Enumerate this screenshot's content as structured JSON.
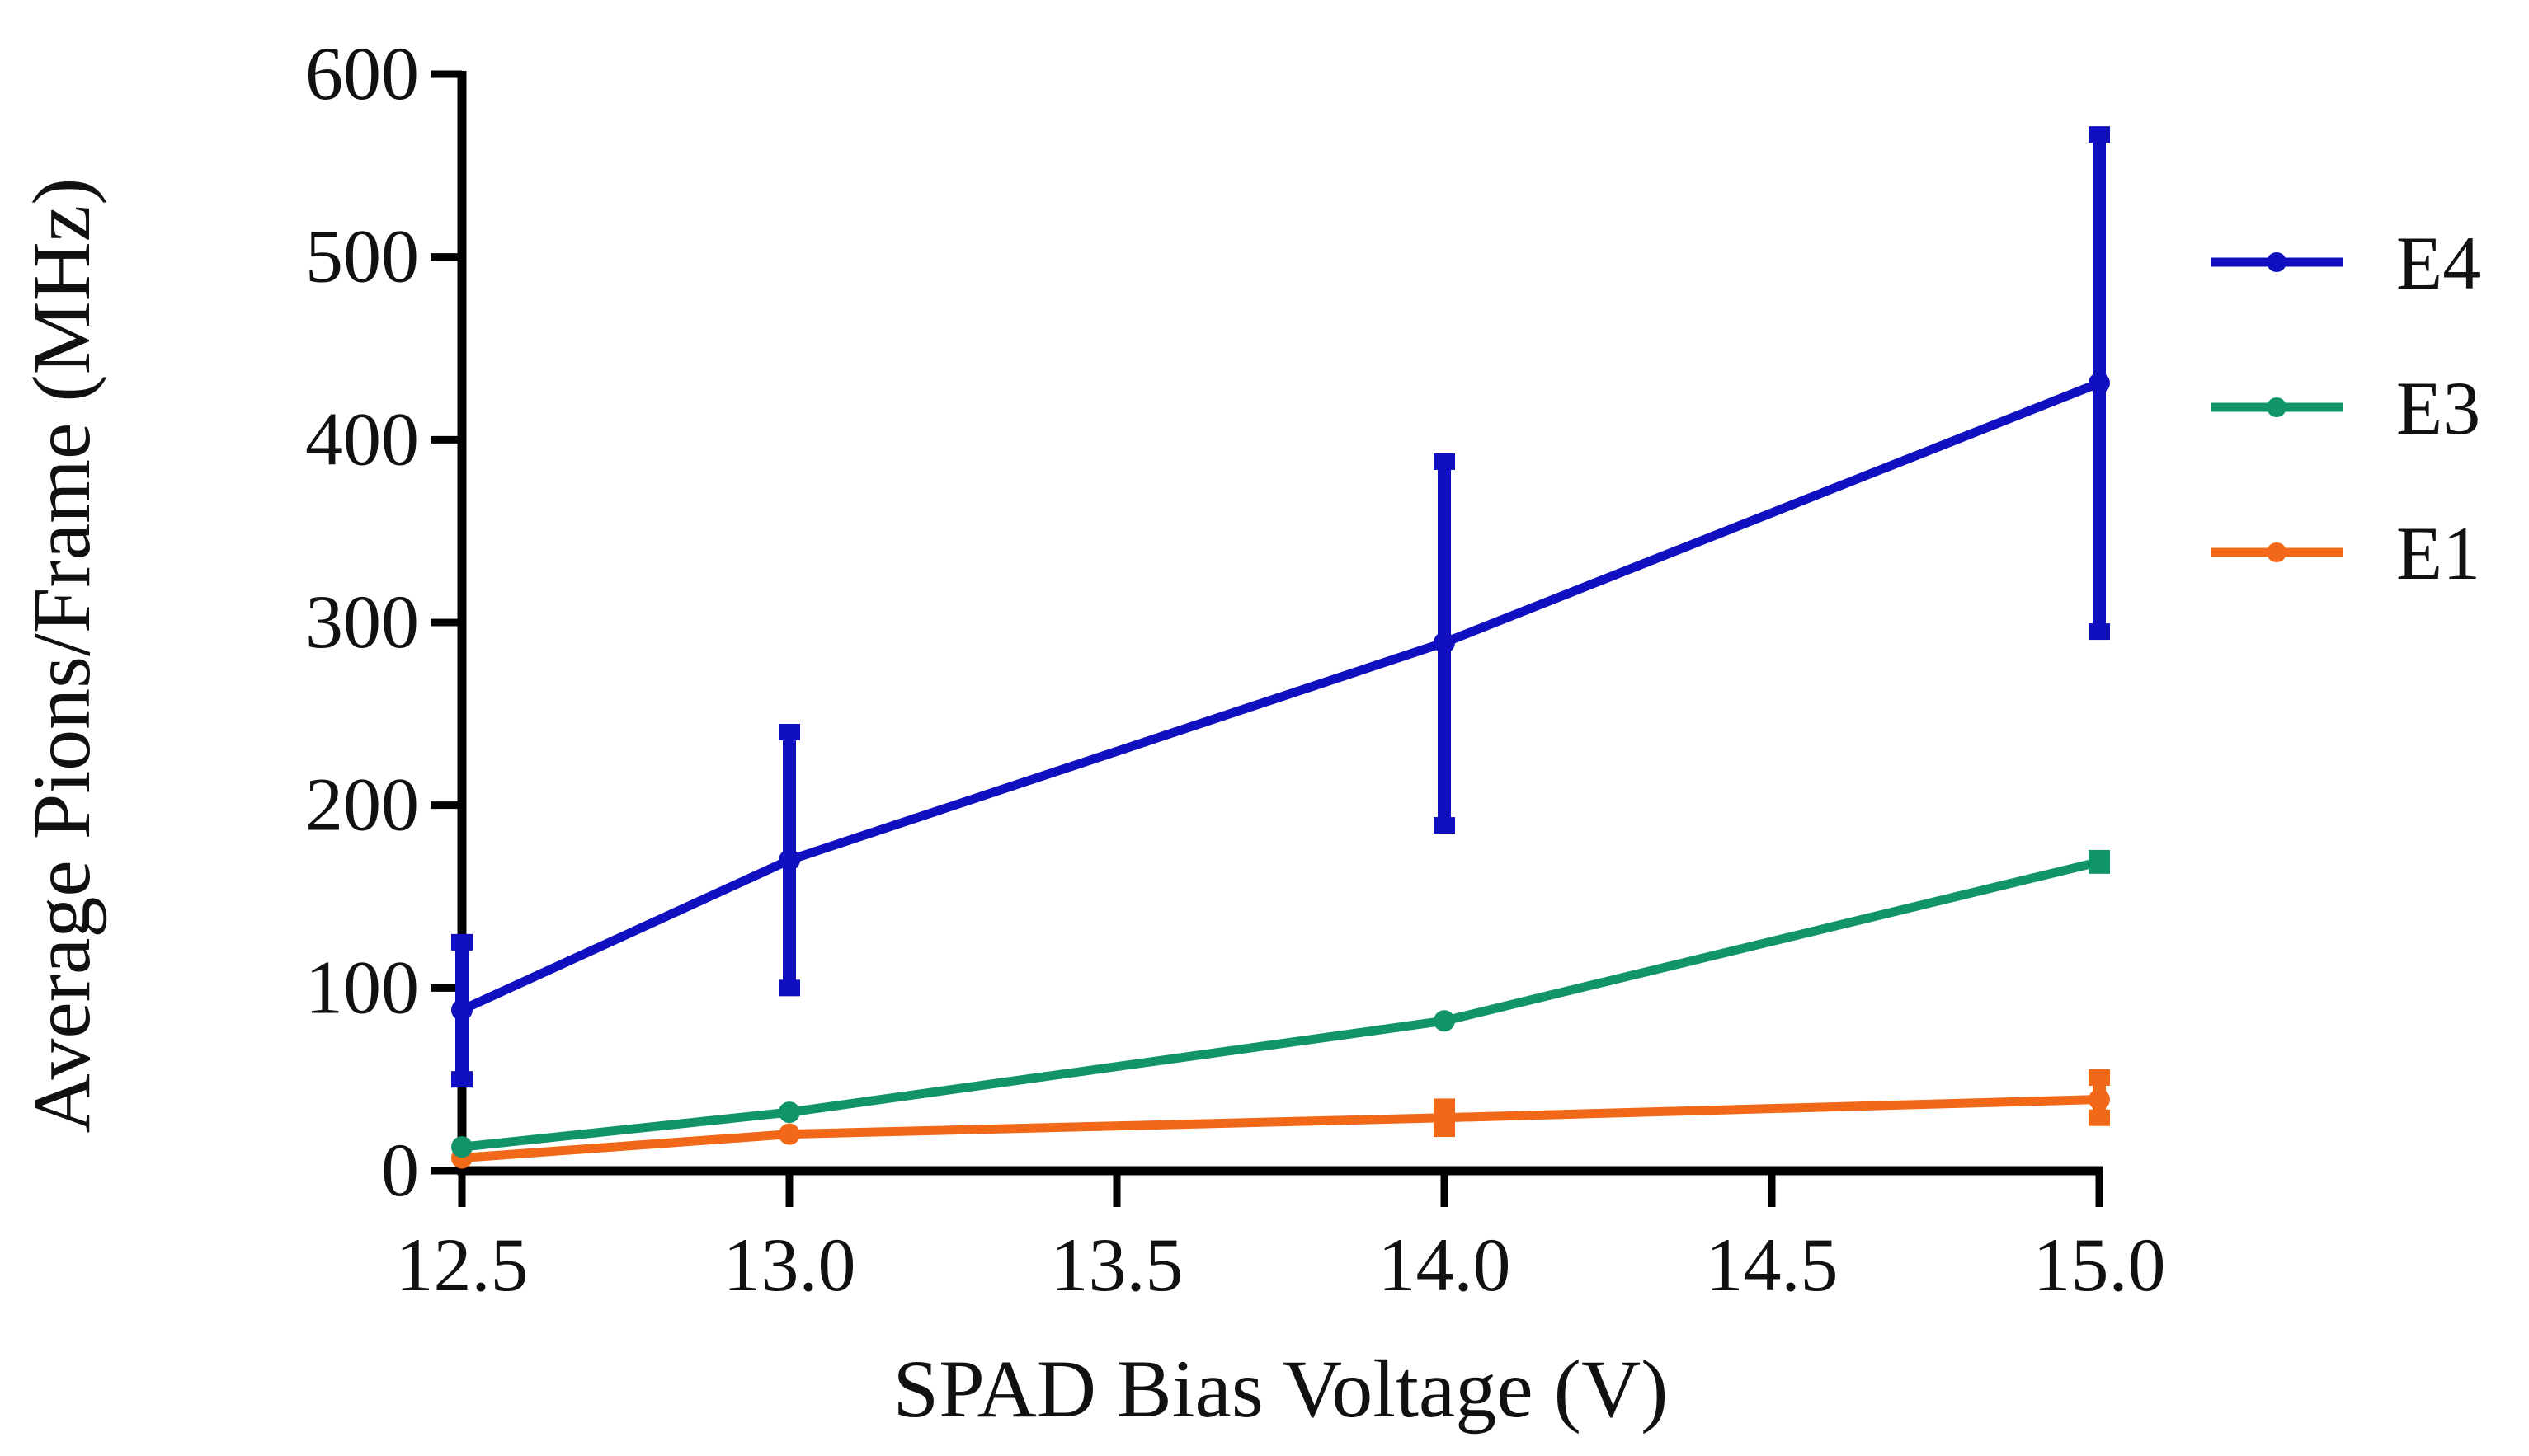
{
  "chart_data": {
    "type": "line",
    "title": "",
    "xlabel": "SPAD Bias Voltage (V)",
    "ylabel": "Average Pions/Frame (MHz)",
    "xlim": [
      12.5,
      15.0
    ],
    "ylim": [
      0,
      600
    ],
    "grid": false,
    "legend_position": "right",
    "x_ticks": [
      "12.5",
      "13.0",
      "13.5",
      "14.0",
      "14.5",
      "15.0"
    ],
    "x_tick_values": [
      12.5,
      13.0,
      13.5,
      14.0,
      14.5,
      15.0
    ],
    "y_ticks": [
      "0",
      "100",
      "200",
      "300",
      "400",
      "500",
      "600"
    ],
    "y_tick_values": [
      0,
      100,
      200,
      300,
      400,
      500,
      600
    ],
    "x": [
      12.5,
      13.0,
      14.0,
      15.0
    ],
    "series": [
      {
        "name": "E4",
        "color": "#1010c0",
        "values": [
          88,
          170,
          289,
          431
        ],
        "err_low": [
          50,
          100,
          189,
          295
        ],
        "err_high": [
          125,
          240,
          388,
          567
        ]
      },
      {
        "name": "E3",
        "color": "#12946a",
        "values": [
          13,
          32,
          82,
          169
        ],
        "err_low": [
          12,
          31,
          81,
          167
        ],
        "err_high": [
          14,
          33,
          83,
          171
        ]
      },
      {
        "name": "E1",
        "color": "#f06818",
        "values": [
          7,
          20,
          29,
          39
        ],
        "err_low": [
          6,
          19,
          23,
          29
        ],
        "err_high": [
          8,
          21,
          35,
          51
        ]
      }
    ]
  }
}
